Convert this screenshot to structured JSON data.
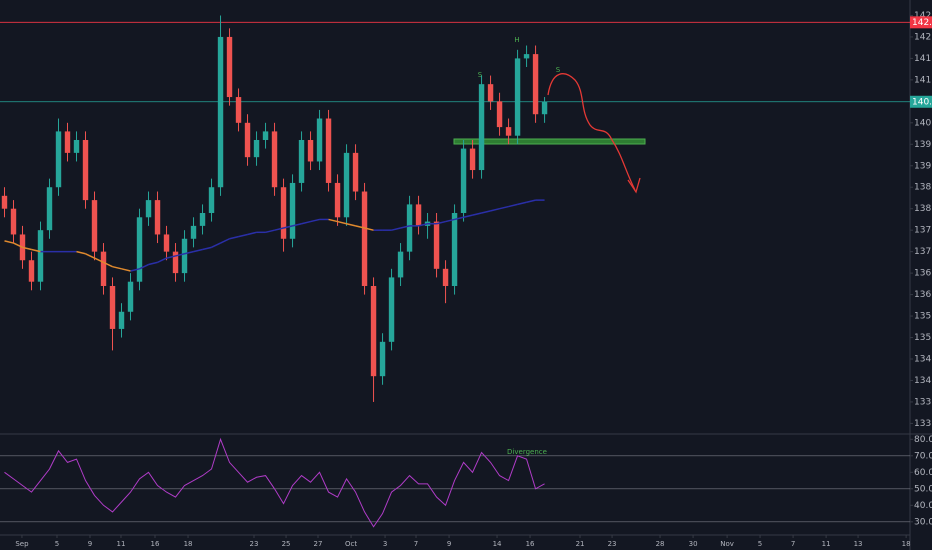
{
  "chart_data": [
    {
      "type": "candlestick",
      "up_color": "#26a69a",
      "down_color": "#ef5350",
      "xlim": [
        -0.5,
        100.6
      ],
      "ylim": [
        132.8,
        142.86
      ],
      "yticks": [
        {
          "value": 142.5,
          "label": "142.50"
        },
        {
          "value": 142,
          "label": "142.00"
        },
        {
          "value": 141.5,
          "label": "141.50"
        },
        {
          "value": 141,
          "label": "141.00"
        },
        {
          "value": 140,
          "label": "140.00"
        },
        {
          "value": 139.5,
          "label": "139.50"
        },
        {
          "value": 139,
          "label": "139.00"
        },
        {
          "value": 138.5,
          "label": "138.50"
        },
        {
          "value": 138,
          "label": "138.00"
        },
        {
          "value": 137.5,
          "label": "137.50"
        },
        {
          "value": 137,
          "label": "137.00"
        },
        {
          "value": 136.5,
          "label": "136.50"
        },
        {
          "value": 136,
          "label": "136.00"
        },
        {
          "value": 135.5,
          "label": "135.50"
        },
        {
          "value": 135,
          "label": "135.00"
        },
        {
          "value": 134.5,
          "label": "134.50"
        },
        {
          "value": 134,
          "label": "134.00"
        },
        {
          "value": 133.5,
          "label": "133.50"
        },
        {
          "value": 133,
          "label": "133.00"
        }
      ],
      "candles": [
        [
          138.3,
          138.5,
          137.8,
          138.0
        ],
        [
          138.0,
          138.2,
          137.2,
          137.4
        ],
        [
          137.4,
          137.6,
          136.6,
          136.8
        ],
        [
          136.8,
          137.0,
          136.1,
          136.3
        ],
        [
          136.3,
          137.7,
          136.1,
          137.5
        ],
        [
          137.5,
          138.7,
          137.3,
          138.5
        ],
        [
          138.5,
          140.1,
          138.3,
          139.8
        ],
        [
          139.8,
          140.0,
          139.1,
          139.3
        ],
        [
          139.3,
          139.8,
          139.1,
          139.6
        ],
        [
          139.6,
          139.8,
          138.0,
          138.2
        ],
        [
          138.2,
          138.4,
          136.8,
          137.0
        ],
        [
          137.0,
          137.2,
          136.0,
          136.2
        ],
        [
          136.2,
          136.4,
          134.7,
          135.2
        ],
        [
          135.2,
          135.8,
          135.0,
          135.6
        ],
        [
          135.6,
          136.5,
          135.4,
          136.3
        ],
        [
          136.3,
          138.0,
          136.1,
          137.8
        ],
        [
          137.8,
          138.4,
          137.6,
          138.2
        ],
        [
          138.2,
          138.4,
          137.2,
          137.4
        ],
        [
          137.4,
          137.6,
          136.8,
          137.0
        ],
        [
          137.0,
          137.2,
          136.3,
          136.5
        ],
        [
          136.5,
          137.5,
          136.3,
          137.3
        ],
        [
          137.3,
          137.8,
          137.1,
          137.6
        ],
        [
          137.6,
          138.1,
          137.4,
          137.9
        ],
        [
          137.9,
          138.7,
          137.7,
          138.5
        ],
        [
          138.5,
          142.5,
          138.3,
          142.0
        ],
        [
          142.0,
          142.2,
          140.4,
          140.6
        ],
        [
          140.6,
          140.8,
          139.8,
          140.0
        ],
        [
          140.0,
          140.2,
          139.0,
          139.2
        ],
        [
          139.2,
          139.8,
          139.0,
          139.6
        ],
        [
          139.6,
          140.0,
          139.4,
          139.8
        ],
        [
          139.8,
          140.0,
          138.3,
          138.5
        ],
        [
          138.5,
          138.7,
          137.0,
          137.3
        ],
        [
          137.3,
          138.8,
          137.1,
          138.6
        ],
        [
          138.6,
          139.8,
          138.4,
          139.6
        ],
        [
          139.6,
          139.8,
          138.9,
          139.1
        ],
        [
          139.1,
          140.3,
          138.9,
          140.1
        ],
        [
          140.1,
          140.3,
          138.4,
          138.6
        ],
        [
          138.6,
          138.8,
          137.6,
          137.8
        ],
        [
          137.8,
          139.5,
          137.6,
          139.3
        ],
        [
          139.3,
          139.5,
          138.2,
          138.4
        ],
        [
          138.4,
          138.6,
          136.0,
          136.2
        ],
        [
          136.2,
          136.4,
          133.5,
          134.1
        ],
        [
          134.1,
          135.1,
          133.9,
          134.9
        ],
        [
          134.9,
          136.6,
          134.7,
          136.4
        ],
        [
          136.4,
          137.2,
          136.2,
          137.0
        ],
        [
          137.0,
          138.3,
          136.8,
          138.1
        ],
        [
          138.1,
          138.3,
          137.4,
          137.6
        ],
        [
          137.6,
          137.9,
          137.3,
          137.7
        ],
        [
          137.7,
          137.9,
          136.4,
          136.6
        ],
        [
          136.6,
          136.8,
          135.8,
          136.2
        ],
        [
          136.2,
          138.1,
          136.0,
          137.9
        ],
        [
          137.9,
          139.6,
          137.7,
          139.4
        ],
        [
          139.4,
          139.6,
          138.7,
          138.9
        ],
        [
          138.9,
          141.1,
          138.7,
          140.9
        ],
        [
          140.9,
          141.1,
          140.3,
          140.5
        ],
        [
          140.5,
          140.7,
          139.7,
          139.9
        ],
        [
          139.9,
          140.1,
          139.5,
          139.7
        ],
        [
          139.7,
          141.7,
          139.5,
          141.5
        ],
        [
          141.5,
          141.8,
          141.3,
          141.6
        ],
        [
          141.6,
          141.8,
          140.0,
          140.2
        ],
        [
          140.2,
          140.6,
          140.0,
          140.49
        ]
      ],
      "ma": {
        "up_color": "#2a2fa8",
        "down_color": "#e08a2e",
        "values": [
          137.25,
          137.2,
          137.1,
          137.05,
          137.0,
          137.0,
          137.0,
          137.0,
          137.0,
          136.95,
          136.85,
          136.75,
          136.65,
          136.6,
          136.55,
          136.6,
          136.7,
          136.75,
          136.85,
          136.9,
          136.95,
          137.0,
          137.05,
          137.1,
          137.2,
          137.3,
          137.35,
          137.4,
          137.45,
          137.45,
          137.5,
          137.55,
          137.6,
          137.65,
          137.7,
          137.75,
          137.75,
          137.7,
          137.65,
          137.6,
          137.55,
          137.5,
          137.5,
          137.5,
          137.55,
          137.6,
          137.6,
          137.65,
          137.65,
          137.7,
          137.75,
          137.8,
          137.85,
          137.9,
          137.95,
          138.0,
          138.05,
          138.1,
          138.15,
          138.2,
          138.2
        ]
      },
      "price_lines": [
        {
          "value": 142.34,
          "label": "142.34",
          "color": "#f23645"
        },
        {
          "value": 140.49,
          "label": "140.49",
          "color": "#26a69a"
        }
      ],
      "annotations": [
        "S",
        "H",
        "S"
      ]
    },
    {
      "type": "line",
      "color": "#b03cc8",
      "xlim": [
        -0.5,
        100.6
      ],
      "ylim": [
        22,
        82
      ],
      "values": [
        60,
        56,
        52,
        48,
        55,
        62,
        73,
        66,
        68,
        55,
        46,
        40,
        36,
        42,
        48,
        56,
        60,
        52,
        48,
        45,
        52,
        55,
        58,
        62,
        80,
        66,
        60,
        54,
        57,
        58,
        50,
        41,
        52,
        58,
        54,
        60,
        48,
        45,
        56,
        48,
        36,
        27,
        35,
        48,
        52,
        58,
        53,
        53,
        45,
        40,
        55,
        66,
        60,
        72,
        66,
        58,
        55,
        70,
        68,
        50,
        53
      ],
      "yticks": [
        {
          "value": 80,
          "label": "80.00"
        },
        {
          "value": 70,
          "label": "70.00"
        },
        {
          "value": 60,
          "label": "60.00"
        },
        {
          "value": 50,
          "label": "50.00"
        },
        {
          "value": 40,
          "label": "40.00"
        },
        {
          "value": 30,
          "label": "30.00"
        }
      ],
      "levels": [
        70,
        50,
        30
      ],
      "annotation": "Divergence",
      "xticks": [
        {
          "value": 1.94,
          "label": "Sep"
        },
        {
          "value": 5.83,
          "label": "5"
        },
        {
          "value": 9.5,
          "label": "9"
        },
        {
          "value": 12.94,
          "label": "11"
        },
        {
          "value": 16.72,
          "label": "16"
        },
        {
          "value": 20.39,
          "label": "18"
        },
        {
          "value": 27.72,
          "label": "23"
        },
        {
          "value": 31.28,
          "label": "25"
        },
        {
          "value": 34.83,
          "label": "27"
        },
        {
          "value": 38.5,
          "label": "Oct"
        },
        {
          "value": 42.28,
          "label": "3"
        },
        {
          "value": 45.72,
          "label": "7"
        },
        {
          "value": 49.39,
          "label": "9"
        },
        {
          "value": 54.72,
          "label": "14"
        },
        {
          "value": 58.39,
          "label": "16"
        },
        {
          "value": 63.94,
          "label": "21"
        },
        {
          "value": 67.5,
          "label": "23"
        },
        {
          "value": 72.83,
          "label": "28"
        },
        {
          "value": 76.5,
          "label": "30"
        },
        {
          "value": 80.28,
          "label": "Nov"
        },
        {
          "value": 83.94,
          "label": "5"
        },
        {
          "value": 87.61,
          "label": "7"
        },
        {
          "value": 91.28,
          "label": "11"
        },
        {
          "value": 94.83,
          "label": "13"
        },
        {
          "value": 100.17,
          "label": "18"
        }
      ]
    }
  ]
}
